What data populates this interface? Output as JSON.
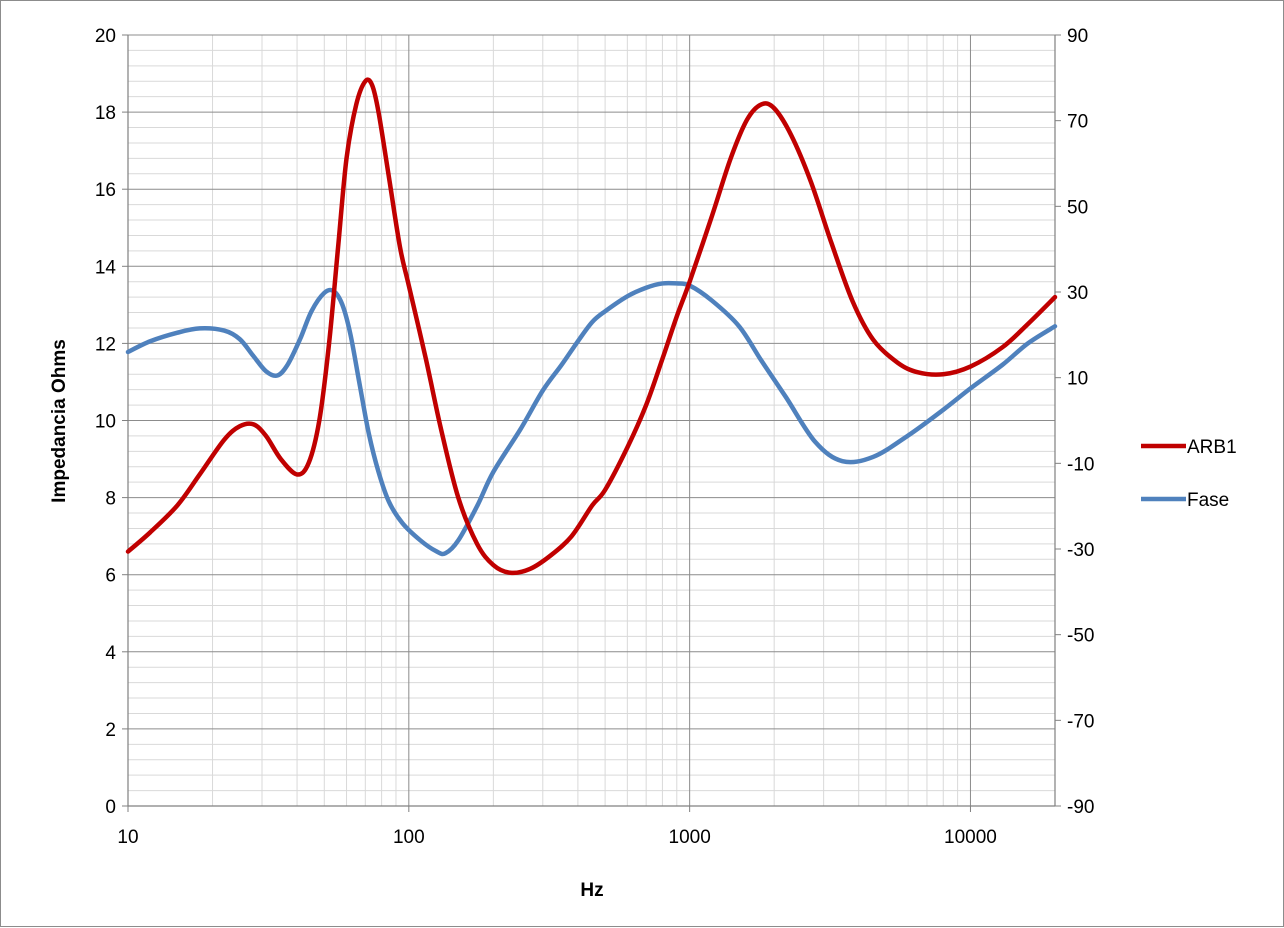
{
  "chart_data": {
    "type": "line",
    "title": "",
    "xlabel": "Hz",
    "ylabel": "Impedancia Ohms",
    "y2label": "",
    "x_scale": "log",
    "xlim": [
      10,
      20000
    ],
    "ylim": [
      0,
      20
    ],
    "y2lim": [
      -90,
      90
    ],
    "x_ticks": [
      10,
      100,
      1000,
      10000
    ],
    "x_tick_labels": [
      "10",
      "100",
      "1000",
      "10000"
    ],
    "y_ticks": [
      0,
      2,
      4,
      6,
      8,
      10,
      12,
      14,
      16,
      18,
      20
    ],
    "y_tick_labels": [
      "0",
      "2",
      "4",
      "6",
      "8",
      "10",
      "12",
      "14",
      "16",
      "18",
      "20"
    ],
    "y2_ticks": [
      -90,
      -70,
      -50,
      -30,
      -10,
      10,
      30,
      50,
      70,
      90
    ],
    "y2_tick_labels": [
      "-90",
      "-70",
      "-50",
      "-30",
      "-10",
      "10",
      "30",
      "50",
      "70",
      "90"
    ],
    "grid": true,
    "legend_position": "right",
    "series": [
      {
        "name": "ARB1",
        "axis": "left",
        "color": "#c00000",
        "x": [
          10,
          12,
          15,
          18,
          22,
          25,
          28,
          31,
          35,
          40,
          44,
          48,
          52,
          56,
          60,
          65,
          70,
          74,
          78,
          85,
          93,
          100,
          115,
          130,
          150,
          175,
          200,
          230,
          270,
          320,
          380,
          450,
          500,
          600,
          700,
          800,
          900,
          1000,
          1200,
          1400,
          1600,
          1800,
          2000,
          2300,
          2700,
          3200,
          3800,
          4500,
          5500,
          6500,
          8000,
          10000,
          13000,
          16000,
          20000
        ],
        "y": [
          6.6,
          7.1,
          7.8,
          8.6,
          9.5,
          9.85,
          9.9,
          9.6,
          9.0,
          8.6,
          8.9,
          10.0,
          12.0,
          14.5,
          16.8,
          18.2,
          18.8,
          18.7,
          18.0,
          16.3,
          14.5,
          13.5,
          11.6,
          9.8,
          8.0,
          6.8,
          6.25,
          6.05,
          6.15,
          6.5,
          7.0,
          7.8,
          8.2,
          9.3,
          10.4,
          11.6,
          12.7,
          13.6,
          15.3,
          16.8,
          17.8,
          18.2,
          18.1,
          17.4,
          16.2,
          14.6,
          13.1,
          12.1,
          11.5,
          11.25,
          11.2,
          11.4,
          11.9,
          12.5,
          13.2
        ]
      },
      {
        "name": "Fase",
        "axis": "right",
        "color": "#4f81bd",
        "x": [
          10,
          12,
          15,
          18,
          22,
          25,
          28,
          31,
          34,
          37,
          41,
          45,
          50,
          54,
          58,
          62,
          67,
          72,
          78,
          85,
          95,
          110,
          125,
          135,
          150,
          175,
          200,
          250,
          300,
          350,
          400,
          450,
          500,
          600,
          700,
          800,
          900,
          1000,
          1200,
          1500,
          1800,
          2200,
          2800,
          3500,
          4500,
          6000,
          8000,
          10000,
          13000,
          16000,
          20000
        ],
        "y": [
          16,
          18.5,
          20.5,
          21.5,
          21,
          19,
          15,
          11.5,
          10.5,
          13,
          19,
          25.5,
          29.8,
          30.2,
          27,
          20,
          8,
          -3,
          -12,
          -19,
          -24,
          -28,
          -30.5,
          -31,
          -28,
          -20,
          -12,
          -2,
          7,
          13,
          18.5,
          23,
          25.5,
          29,
          31,
          32,
          32,
          31.5,
          28,
          22,
          14,
          5.5,
          -5,
          -9.5,
          -8.5,
          -3.5,
          2.5,
          7.5,
          13,
          18,
          22
        ]
      }
    ]
  }
}
